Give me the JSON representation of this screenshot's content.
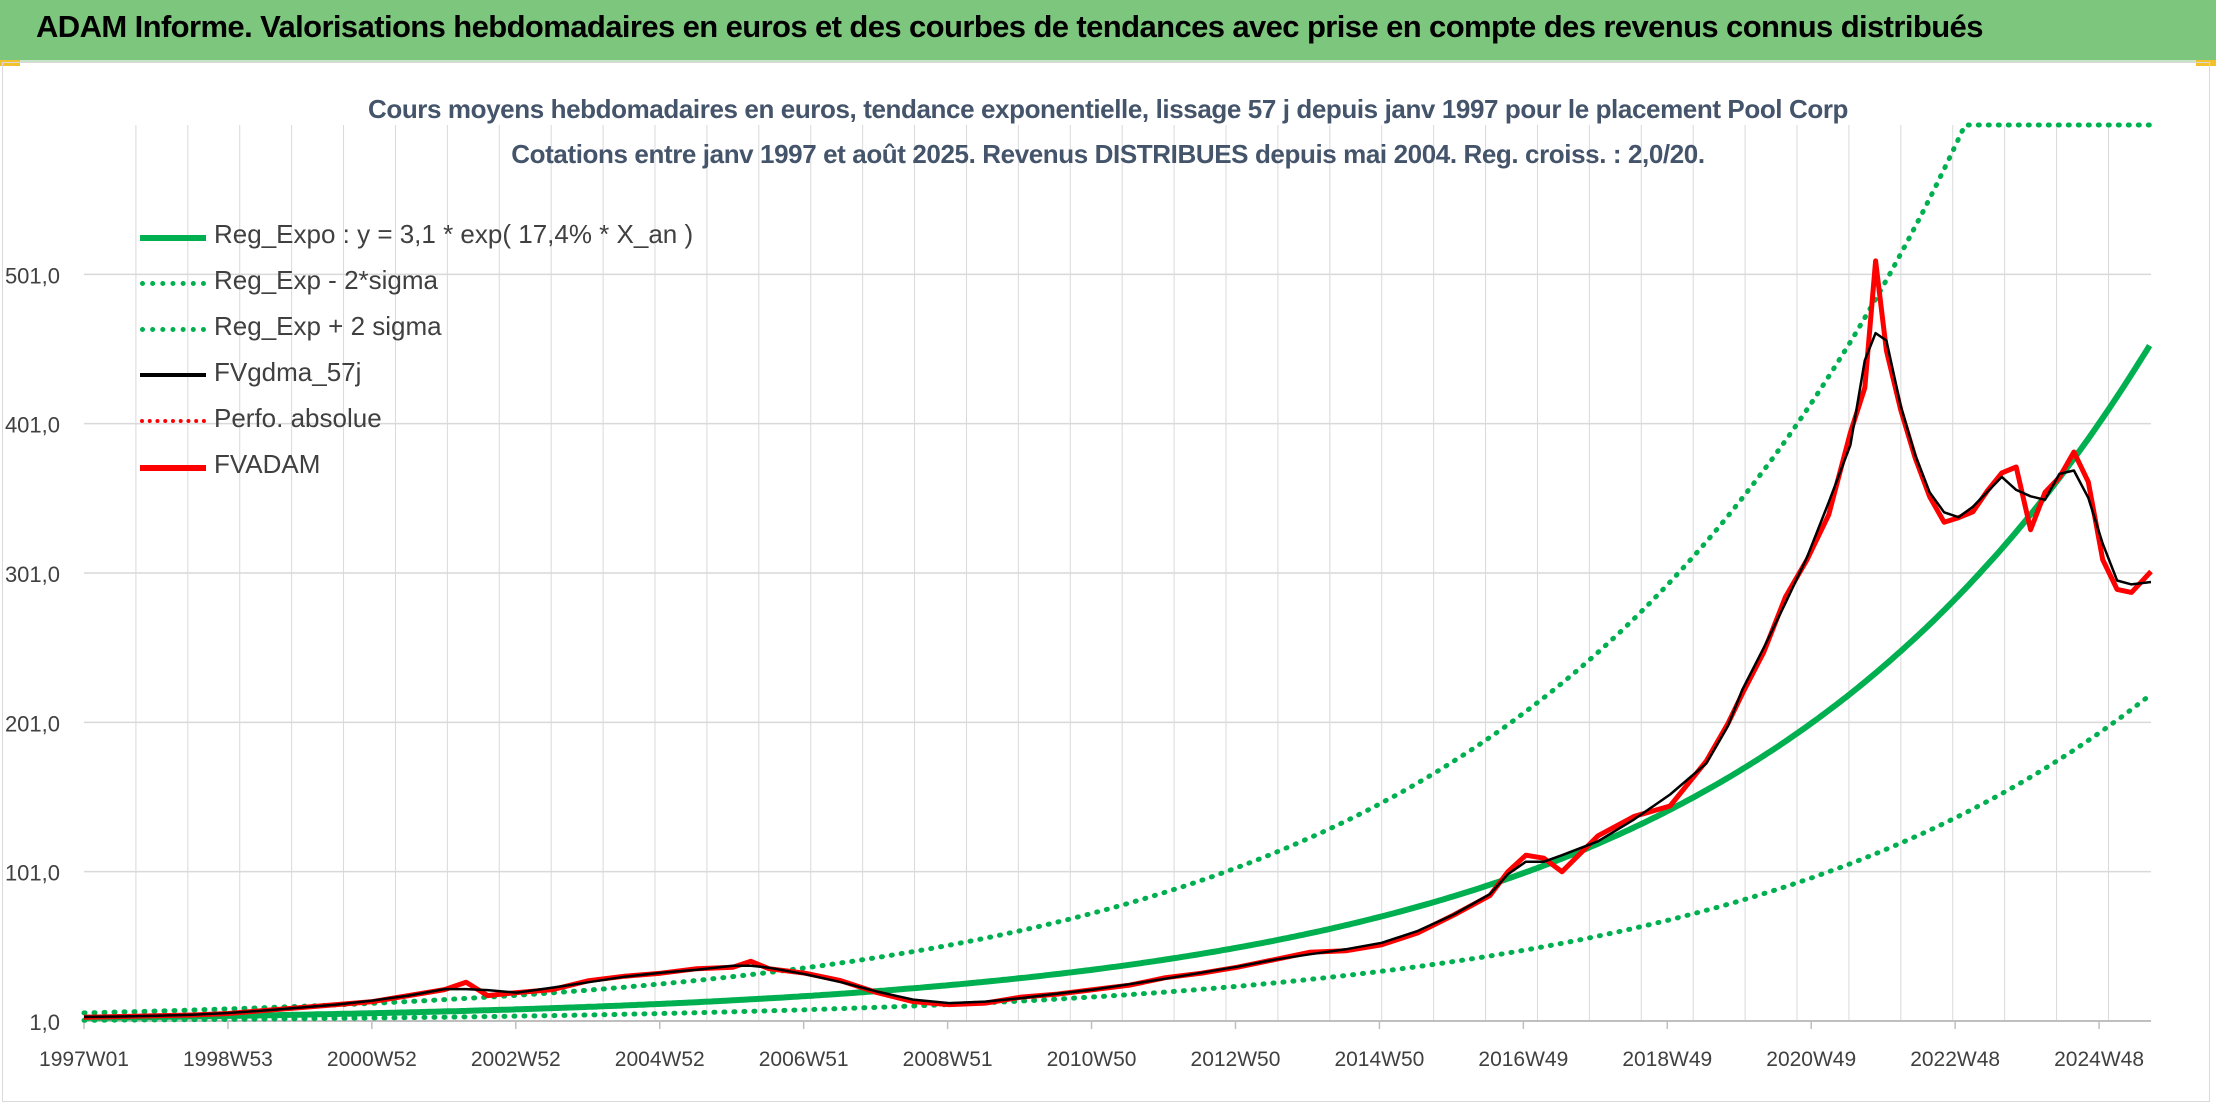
{
  "header": {
    "title": "ADAM Informe. Valorisations hebdomadaires en euros et des courbes de tendances avec prise en compte des revenus connus distribués"
  },
  "colors": {
    "header_bg": "#7dc67d",
    "title_text": "#44546a",
    "green": "#00b050",
    "red": "#ff0000",
    "black": "#000000",
    "grid": "#d9d9d9"
  },
  "chart_data": {
    "type": "line",
    "title": "Cours moyens hebdomadaires en euros, tendance exponentielle, lissage 57 j depuis janv 1997 pour le placement Pool Corp",
    "subtitle": "Cotations entre janv 1997 et août 2025. Revenus DISTRIBUES depuis mai 2004. Reg. croiss. : 2,0/20.",
    "x_tick_labels": [
      "1997W01",
      "1998W53",
      "2000W52",
      "2002W52",
      "2004W52",
      "2006W51",
      "2008W51",
      "2010W50",
      "2012W50",
      "2014W50",
      "2016W49",
      "2018W49",
      "2020W49",
      "2022W48",
      "2024W48"
    ],
    "x_range": [
      1997.0,
      2025.67
    ],
    "y_tick_labels": [
      "1,0",
      "101,0",
      "201,0",
      "301,0",
      "401,0",
      "501,0"
    ],
    "y_ticks": [
      1,
      101,
      201,
      301,
      401,
      501
    ],
    "ylim": [
      1,
      601
    ],
    "grid": true,
    "legend_position": "top-left",
    "regression": {
      "a": 3.1,
      "b": 0.174,
      "sigma_factor": 2.07
    },
    "series": [
      {
        "name": "Reg_Expo : y = 3,1 * exp( 17,4% *  X_an )",
        "color": "#00b050",
        "style": "solid",
        "kind": "trend"
      },
      {
        "name": "Reg_Exp - 2*sigma",
        "color": "#00b050",
        "style": "dotted",
        "kind": "lower"
      },
      {
        "name": "Reg_Exp + 2 sigma",
        "color": "#00b050",
        "style": "dotted",
        "kind": "upper"
      },
      {
        "name": "FVgdma_57j",
        "color": "#000000",
        "style": "solid",
        "kind": "smooth"
      },
      {
        "name": "Perfo. absolue",
        "color": "#ff0000",
        "style": "dotted",
        "kind": "absolute"
      },
      {
        "name": "FVADAM",
        "color": "#ff0000",
        "style": "solid",
        "kind": "price",
        "x": [
          1997.0,
          1997.5,
          1998.0,
          1998.5,
          1999.0,
          1999.5,
          2000.0,
          2000.5,
          2001.0,
          2001.5,
          2002.0,
          2002.3,
          2002.6,
          2003.0,
          2003.5,
          2004.0,
          2004.5,
          2005.0,
          2005.5,
          2006.0,
          2006.25,
          2006.5,
          2007.0,
          2007.5,
          2008.0,
          2008.5,
          2009.0,
          2009.5,
          2010.0,
          2010.5,
          2011.0,
          2011.5,
          2012.0,
          2012.5,
          2013.0,
          2013.5,
          2014.0,
          2014.5,
          2015.0,
          2015.5,
          2016.0,
          2016.5,
          2016.75,
          2017.0,
          2017.25,
          2017.5,
          2018.0,
          2018.5,
          2019.0,
          2019.5,
          2019.8,
          2020.0,
          2020.3,
          2020.6,
          2020.9,
          2021.2,
          2021.5,
          2021.7,
          2021.85,
          2022.0,
          2022.2,
          2022.4,
          2022.6,
          2022.8,
          2023.0,
          2023.2,
          2023.4,
          2023.6,
          2023.8,
          2024.0,
          2024.2,
          2024.4,
          2024.6,
          2024.8,
          2025.0,
          2025.2,
          2025.4,
          2025.67
        ],
        "values": [
          3.5,
          4,
          4.5,
          5,
          6,
          8,
          10,
          12,
          14,
          18,
          22,
          27,
          18,
          20,
          22,
          28,
          31,
          33,
          36,
          37,
          41,
          36,
          33,
          28,
          20,
          14,
          12,
          13,
          17,
          19,
          22,
          25,
          30,
          33,
          37,
          42,
          47,
          48,
          52,
          60,
          72,
          85,
          101,
          112,
          110,
          101,
          125,
          138,
          145,
          175,
          200,
          220,
          248,
          285,
          310,
          340,
          395,
          425,
          510,
          450,
          410,
          378,
          352,
          335,
          338,
          342,
          356,
          368,
          372,
          330,
          355,
          365,
          382,
          362,
          310,
          290,
          288,
          302
        ]
      }
    ]
  }
}
